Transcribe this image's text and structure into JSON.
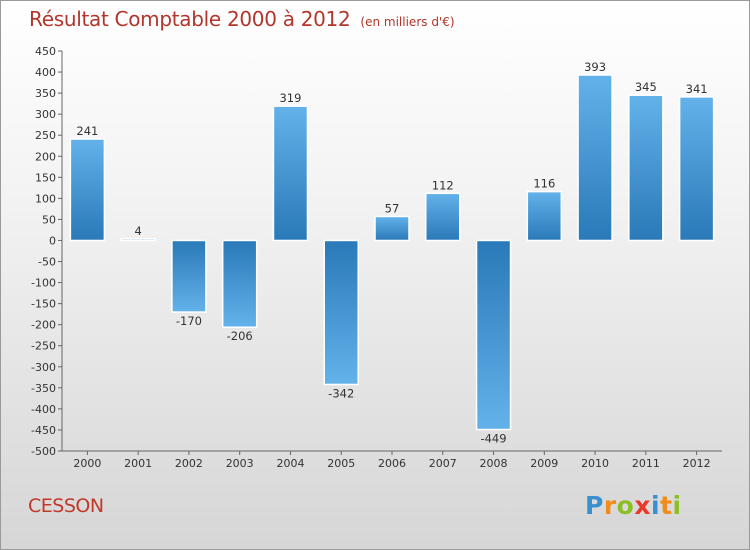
{
  "header": {
    "title": "Résultat Comptable 2000 à 2012",
    "subtitle": "(en milliers d'€)"
  },
  "footer": {
    "commune": "CESSON",
    "logo": {
      "letters": [
        "P",
        "r",
        "o",
        "x",
        "i",
        "t",
        "i"
      ],
      "colors": [
        "#3a8fd1",
        "#f08c1a",
        "#8cbf26",
        "#e8392b",
        "#3a8fd1",
        "#f08c1a",
        "#8cbf26"
      ]
    }
  },
  "chart_data": {
    "type": "bar",
    "title": "Résultat Comptable 2000 à 2012",
    "subtitle": "(en milliers d'€)",
    "categories": [
      "2000",
      "2001",
      "2002",
      "2003",
      "2004",
      "2005",
      "2006",
      "2007",
      "2008",
      "2009",
      "2010",
      "2011",
      "2012"
    ],
    "values": [
      241,
      4,
      -170,
      -206,
      319,
      -342,
      57,
      112,
      -449,
      116,
      393,
      345,
      341
    ],
    "data_labels": [
      "241",
      "4",
      "-170",
      "-206",
      "319",
      "-342",
      "57",
      "112",
      "-449",
      "116",
      "393",
      "345",
      "341"
    ],
    "ylim": [
      -500,
      450
    ],
    "yticks": [
      450,
      400,
      350,
      300,
      250,
      200,
      150,
      100,
      50,
      0,
      -50,
      -100,
      -150,
      -200,
      -250,
      -300,
      -350,
      -400,
      -450,
      -500
    ],
    "grid": false,
    "colors": {
      "bar_light": "#63b2ea",
      "bar_dark": "#2a79b8",
      "axis": "#666666"
    }
  }
}
